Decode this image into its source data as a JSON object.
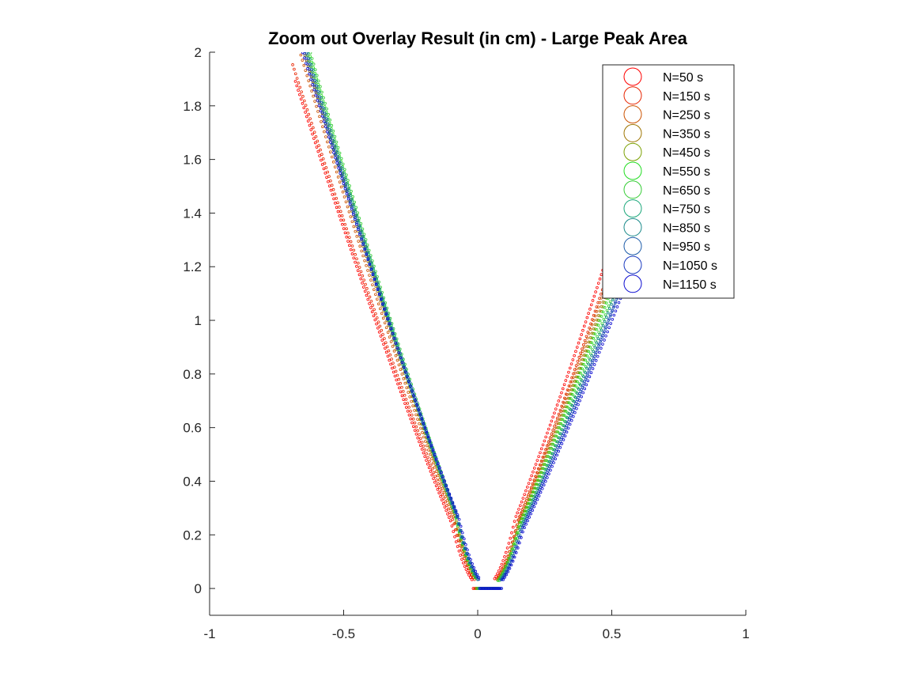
{
  "chart_data": {
    "type": "scatter",
    "title": "Zoom out Overlay Result (in cm) - Large Peak Area",
    "xlabel": "",
    "ylabel": "",
    "xlim": [
      -1,
      1
    ],
    "ylim": [
      -0.1,
      2
    ],
    "x_ticks": [
      "-1",
      "-0.5",
      "0",
      "0.5",
      "1"
    ],
    "y_ticks": [
      "0",
      "0.2",
      "0.4",
      "0.6",
      "0.8",
      "1",
      "1.2",
      "1.4",
      "1.6",
      "1.8",
      "2"
    ],
    "grid": false,
    "legend_position": "top-right",
    "marker": "open-circle",
    "series": [
      {
        "name": "N=50 s",
        "color": "#ff0000",
        "vertex_x": 0.02,
        "curvature_left": 2.85,
        "curvature_right": 3.0,
        "x_start": -0.68,
        "x_end": 0.7
      },
      {
        "name": "N=150 s",
        "color": "#e82400",
        "vertex_x": 0.03,
        "curvature_left": 2.85,
        "curvature_right": 2.9,
        "x_start": -0.69,
        "x_end": 0.72
      },
      {
        "name": "N=250 s",
        "color": "#cc5200",
        "vertex_x": 0.03,
        "curvature_left": 3.05,
        "curvature_right": 2.85,
        "x_start": -0.77,
        "x_end": 0.74
      },
      {
        "name": "N=350 s",
        "color": "#9e7400",
        "vertex_x": 0.035,
        "curvature_left": 3.1,
        "curvature_right": 2.8,
        "x_start": -0.78,
        "x_end": 0.75
      },
      {
        "name": "N=450 s",
        "color": "#7aa000",
        "vertex_x": 0.035,
        "curvature_left": 3.15,
        "curvature_right": 2.75,
        "x_start": -0.79,
        "x_end": 0.76
      },
      {
        "name": "N=550 s",
        "color": "#22dd22",
        "vertex_x": 0.035,
        "curvature_left": 3.2,
        "curvature_right": 2.7,
        "x_start": -0.8,
        "x_end": 0.77
      },
      {
        "name": "N=650 s",
        "color": "#33cc33",
        "vertex_x": 0.04,
        "curvature_left": 3.2,
        "curvature_right": 2.65,
        "x_start": -0.8,
        "x_end": 0.78
      },
      {
        "name": "N=750 s",
        "color": "#1aa77a",
        "vertex_x": 0.04,
        "curvature_left": 3.15,
        "curvature_right": 2.6,
        "x_start": -0.79,
        "x_end": 0.79
      },
      {
        "name": "N=850 s",
        "color": "#1a8a8a",
        "vertex_x": 0.04,
        "curvature_left": 3.1,
        "curvature_right": 2.6,
        "x_start": -0.79,
        "x_end": 0.79
      },
      {
        "name": "N=950 s",
        "color": "#1a5aa8",
        "vertex_x": 0.045,
        "curvature_left": 3.1,
        "curvature_right": 2.55,
        "x_start": -0.79,
        "x_end": 0.8
      },
      {
        "name": "N=1050 s",
        "color": "#1a3ac0",
        "vertex_x": 0.045,
        "curvature_left": 3.05,
        "curvature_right": 2.55,
        "x_start": -0.78,
        "x_end": 0.8
      },
      {
        "name": "N=1150 s",
        "color": "#0a0ad0",
        "vertex_x": 0.05,
        "curvature_left": 3.0,
        "curvature_right": 2.5,
        "x_start": -0.78,
        "x_end": 0.8
      }
    ]
  }
}
